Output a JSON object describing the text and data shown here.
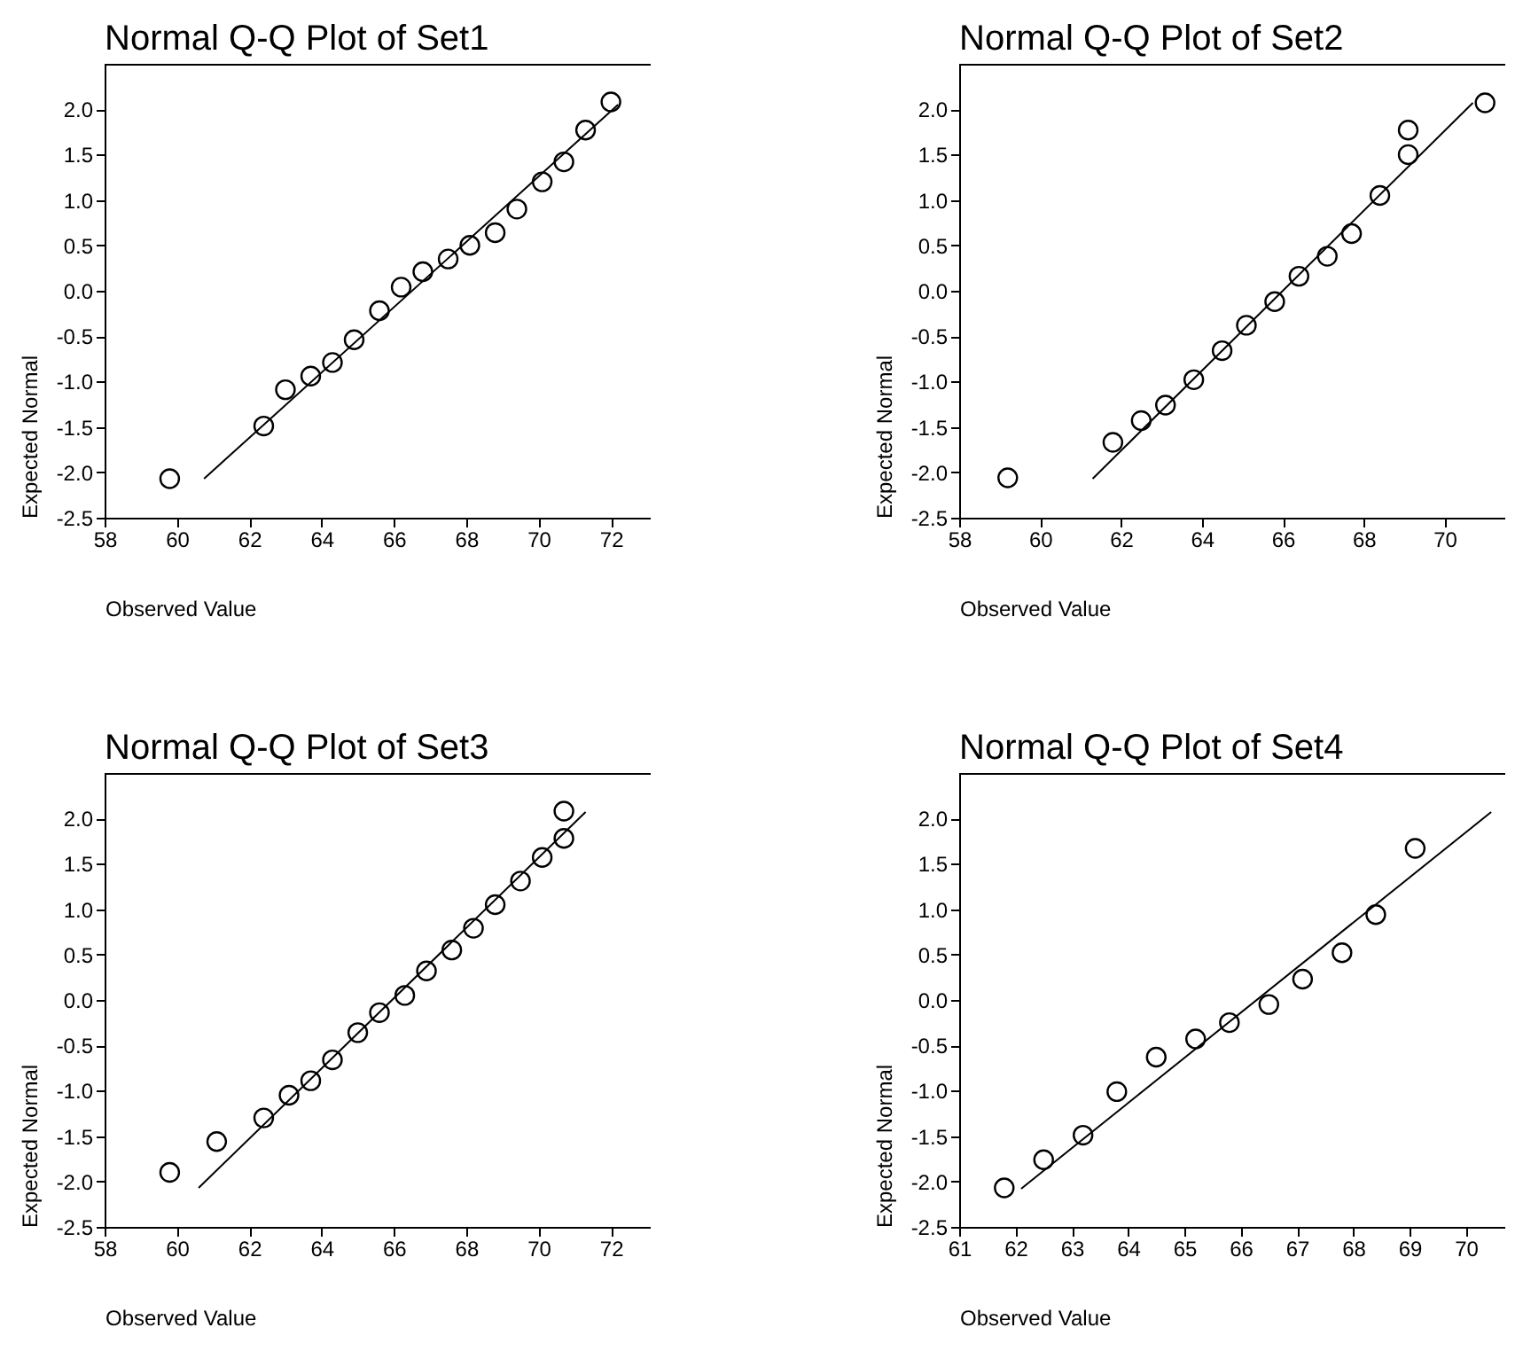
{
  "chart_data": [
    {
      "type": "scatter",
      "title": "Normal Q-Q Plot of Set1",
      "xlabel": "Observed Value",
      "ylabel": "Expected Normal",
      "marker": "circle",
      "grid": false,
      "xlim": [
        58,
        73.1
      ],
      "ylim": [
        -2.5,
        2.5
      ],
      "xticks": [
        58,
        60,
        62,
        64,
        66,
        68,
        70,
        72
      ],
      "yticks": [
        {
          "value": -2.5,
          "label": "-2.5"
        },
        {
          "value": -2,
          "label": "-2.0"
        },
        {
          "value": -1.5,
          "label": "-1.5"
        },
        {
          "value": -1,
          "label": "-1.0"
        },
        {
          "value": -0.5,
          "label": "-0.5"
        },
        {
          "value": 0,
          "label": "0.0"
        },
        {
          "value": 0.5,
          "label": "0.5"
        },
        {
          "value": 1,
          "label": "1.0"
        },
        {
          "value": 1.5,
          "label": "1.5"
        },
        {
          "value": 2,
          "label": "2.0"
        }
      ],
      "series": [
        {
          "type": "scatter",
          "color": "#000000",
          "x": [
            59.8,
            62.4,
            63.0,
            63.7,
            64.3,
            64.9,
            65.6,
            66.2,
            66.8,
            67.5,
            68.1,
            68.8,
            69.4,
            70.1,
            70.7,
            71.3,
            72.0
          ],
          "values": [
            -2.07,
            -1.49,
            -1.09,
            -0.94,
            -0.79,
            -0.54,
            -0.22,
            0.04,
            0.21,
            0.35,
            0.5,
            0.64,
            0.9,
            1.2,
            1.42,
            1.77,
            2.08
          ]
        },
        {
          "type": "line",
          "marker": "none",
          "color": "#000000",
          "x": [
            60.75,
            72.2
          ],
          "values": [
            -2.07,
            2.05
          ]
        }
      ]
    },
    {
      "type": "scatter",
      "title": "Normal Q-Q Plot of Set2",
      "xlabel": "Observed Value",
      "ylabel": "Expected Normal",
      "marker": "circle",
      "grid": false,
      "xlim": [
        58,
        71.5
      ],
      "ylim": [
        -2.5,
        2.5
      ],
      "xticks": [
        58,
        60,
        62,
        64,
        66,
        68,
        70
      ],
      "yticks": [
        {
          "value": -2.5,
          "label": "-2.5"
        },
        {
          "value": -2,
          "label": "-2.0"
        },
        {
          "value": -1.5,
          "label": "-1.5"
        },
        {
          "value": -1,
          "label": "-1.0"
        },
        {
          "value": -0.5,
          "label": "-0.5"
        },
        {
          "value": 0,
          "label": "0.0"
        },
        {
          "value": 0.5,
          "label": "0.5"
        },
        {
          "value": 1,
          "label": "1.0"
        },
        {
          "value": 1.5,
          "label": "1.5"
        },
        {
          "value": 2,
          "label": "2.0"
        }
      ],
      "series": [
        {
          "type": "scatter",
          "color": "#000000",
          "x": [
            59.2,
            61.8,
            62.5,
            63.1,
            63.8,
            64.5,
            65.1,
            65.8,
            66.4,
            67.1,
            67.7,
            68.4,
            69.1,
            69.1,
            71.0
          ],
          "values": [
            -2.06,
            -1.67,
            -1.43,
            -1.26,
            -0.98,
            -0.66,
            -0.38,
            -0.12,
            0.16,
            0.38,
            0.63,
            1.05,
            1.5,
            1.77,
            2.07
          ]
        },
        {
          "type": "line",
          "marker": "none",
          "color": "#000000",
          "x": [
            61.3,
            70.7
          ],
          "values": [
            -2.07,
            2.07
          ]
        }
      ]
    },
    {
      "type": "scatter",
      "title": "Normal Q-Q Plot of Set3",
      "xlabel": "Observed Value",
      "ylabel": "Expected Normal",
      "marker": "circle",
      "grid": false,
      "xlim": [
        58,
        73.1
      ],
      "ylim": [
        -2.5,
        2.5
      ],
      "xticks": [
        58,
        60,
        62,
        64,
        66,
        68,
        70,
        72
      ],
      "yticks": [
        {
          "value": -2.5,
          "label": "-2.5"
        },
        {
          "value": -2,
          "label": "-2.0"
        },
        {
          "value": -1.5,
          "label": "-1.5"
        },
        {
          "value": -1,
          "label": "-1.0"
        },
        {
          "value": -0.5,
          "label": "-0.5"
        },
        {
          "value": 0,
          "label": "0.0"
        },
        {
          "value": 0.5,
          "label": "0.5"
        },
        {
          "value": 1,
          "label": "1.0"
        },
        {
          "value": 1.5,
          "label": "1.5"
        },
        {
          "value": 2,
          "label": "2.0"
        }
      ],
      "series": [
        {
          "type": "scatter",
          "color": "#000000",
          "x": [
            59.8,
            61.1,
            62.4,
            63.1,
            63.7,
            64.3,
            65.0,
            65.6,
            66.3,
            66.9,
            67.6,
            68.2,
            68.8,
            69.5,
            70.1,
            70.7,
            70.7
          ],
          "values": [
            -1.9,
            -1.56,
            -1.3,
            -1.05,
            -0.89,
            -0.66,
            -0.36,
            -0.14,
            0.05,
            0.32,
            0.55,
            0.79,
            1.05,
            1.31,
            1.57,
            1.78,
            2.08
          ]
        },
        {
          "type": "line",
          "marker": "none",
          "color": "#000000",
          "x": [
            60.6,
            71.3
          ],
          "values": [
            -2.07,
            2.07
          ]
        }
      ]
    },
    {
      "type": "scatter",
      "title": "Normal Q-Q Plot of Set4",
      "xlabel": "Observed Value",
      "ylabel": "Expected Normal",
      "marker": "circle",
      "grid": false,
      "xlim": [
        61,
        70.7
      ],
      "ylim": [
        -2.5,
        2.5
      ],
      "xticks": [
        61,
        62,
        63,
        64,
        65,
        66,
        67,
        68,
        69,
        70
      ],
      "yticks": [
        {
          "value": -2.5,
          "label": "-2.5"
        },
        {
          "value": -2,
          "label": "-2.0"
        },
        {
          "value": -1.5,
          "label": "-1.5"
        },
        {
          "value": -1,
          "label": "-1.0"
        },
        {
          "value": -0.5,
          "label": "-0.5"
        },
        {
          "value": 0,
          "label": "0.0"
        },
        {
          "value": 0.5,
          "label": "0.5"
        },
        {
          "value": 1,
          "label": "1.0"
        },
        {
          "value": 1.5,
          "label": "1.5"
        },
        {
          "value": 2,
          "label": "2.0"
        }
      ],
      "series": [
        {
          "type": "scatter",
          "color": "#000000",
          "x": [
            61.8,
            62.5,
            63.2,
            63.8,
            64.5,
            65.2,
            65.8,
            66.5,
            67.1,
            67.8,
            68.4,
            69.1
          ],
          "values": [
            -2.07,
            -1.76,
            -1.49,
            -1.01,
            -0.63,
            -0.43,
            -0.25,
            -0.05,
            0.23,
            0.52,
            0.94,
            1.67
          ]
        },
        {
          "type": "line",
          "marker": "none",
          "color": "#000000",
          "x": [
            62.1,
            70.45
          ],
          "values": [
            -2.08,
            2.07
          ]
        }
      ]
    }
  ]
}
